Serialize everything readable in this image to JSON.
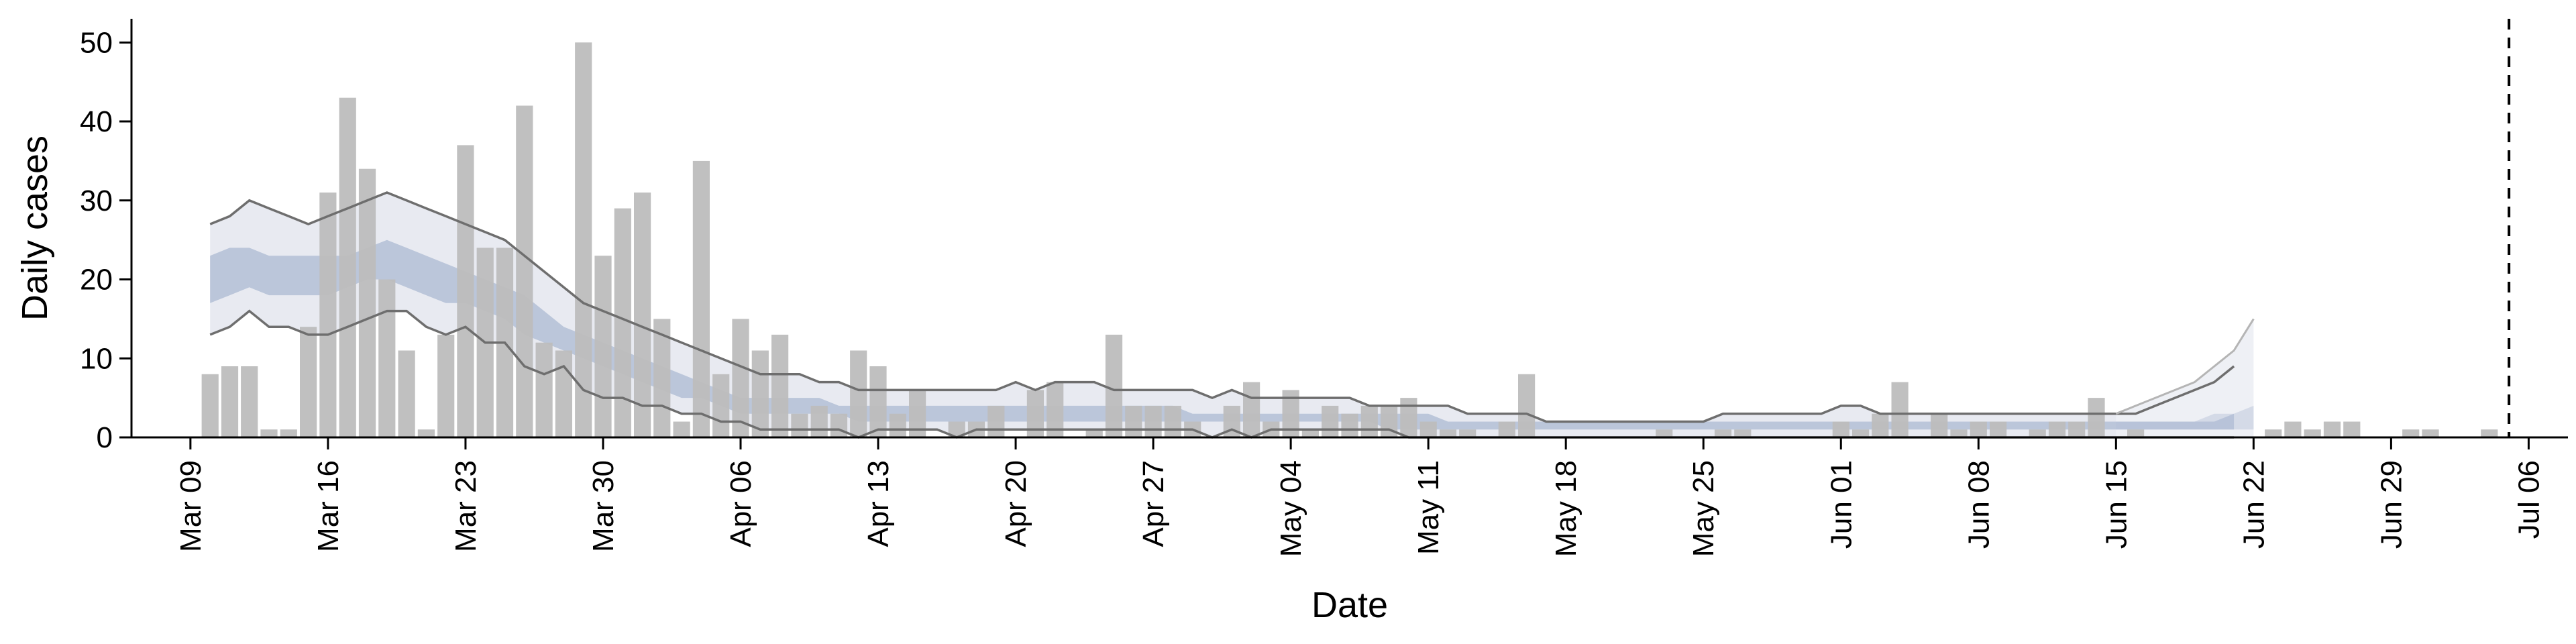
{
  "chart_data": {
    "type": "bar",
    "xlabel": "Date",
    "ylabel": "Daily cases",
    "ylim": [
      0,
      53
    ],
    "yticks": [
      0,
      10,
      20,
      30,
      40,
      50
    ],
    "xlim": [
      "2020-03-06",
      "2020-07-08"
    ],
    "xticks": [
      {
        "date": "2020-03-09",
        "label": "Mar 09"
      },
      {
        "date": "2020-03-16",
        "label": "Mar 16"
      },
      {
        "date": "2020-03-23",
        "label": "Mar 23"
      },
      {
        "date": "2020-03-30",
        "label": "Mar 30"
      },
      {
        "date": "2020-04-06",
        "label": "Apr 06"
      },
      {
        "date": "2020-04-13",
        "label": "Apr 13"
      },
      {
        "date": "2020-04-20",
        "label": "Apr 20"
      },
      {
        "date": "2020-04-27",
        "label": "Apr 27"
      },
      {
        "date": "2020-05-04",
        "label": "May 04"
      },
      {
        "date": "2020-05-11",
        "label": "May 11"
      },
      {
        "date": "2020-05-18",
        "label": "May 18"
      },
      {
        "date": "2020-05-25",
        "label": "May 25"
      },
      {
        "date": "2020-06-01",
        "label": "Jun 01"
      },
      {
        "date": "2020-06-08",
        "label": "Jun 08"
      },
      {
        "date": "2020-06-15",
        "label": "Jun 15"
      },
      {
        "date": "2020-06-22",
        "label": "Jun 22"
      },
      {
        "date": "2020-06-29",
        "label": "Jun 29"
      },
      {
        "date": "2020-07-06",
        "label": "Jul 06"
      }
    ],
    "bars": {
      "start_date": "2020-03-10",
      "values": [
        8,
        9,
        9,
        1,
        1,
        14,
        31,
        43,
        34,
        20,
        11,
        1,
        13,
        37,
        24,
        24,
        42,
        12,
        11,
        50,
        23,
        29,
        31,
        15,
        2,
        35,
        8,
        15,
        11,
        13,
        3,
        4,
        3,
        11,
        9,
        3,
        6,
        0,
        2,
        2,
        4,
        0,
        6,
        7,
        0,
        1,
        13,
        4,
        4,
        4,
        2,
        0,
        4,
        7,
        2,
        6,
        1,
        4,
        3,
        4,
        4,
        5,
        2,
        1,
        1,
        0,
        2,
        8,
        0,
        0,
        0,
        0,
        0,
        0,
        1,
        0,
        0,
        1,
        1,
        0,
        0,
        0,
        0,
        2,
        1,
        3,
        7,
        0,
        3,
        1,
        2,
        2,
        0,
        1,
        2,
        2,
        5,
        0,
        1,
        0,
        0,
        0,
        0,
        0,
        0,
        1,
        2,
        1,
        2,
        2,
        0,
        0,
        1,
        1,
        0,
        0,
        1
      ]
    },
    "band_dates": [
      "2020-03-10",
      "2020-03-11",
      "2020-03-12",
      "2020-03-13",
      "2020-03-14",
      "2020-03-15",
      "2020-03-16",
      "2020-03-17",
      "2020-03-18",
      "2020-03-19",
      "2020-03-20",
      "2020-03-21",
      "2020-03-22",
      "2020-03-23",
      "2020-03-24",
      "2020-03-25",
      "2020-03-26",
      "2020-03-27",
      "2020-03-28",
      "2020-03-29",
      "2020-03-30",
      "2020-03-31",
      "2020-04-01",
      "2020-04-02",
      "2020-04-03",
      "2020-04-04",
      "2020-04-05",
      "2020-04-06",
      "2020-04-07",
      "2020-04-08",
      "2020-04-09",
      "2020-04-10",
      "2020-04-11",
      "2020-04-12",
      "2020-04-13",
      "2020-04-14",
      "2020-04-15",
      "2020-04-16",
      "2020-04-17",
      "2020-04-18",
      "2020-04-19",
      "2020-04-20",
      "2020-04-21",
      "2020-04-22",
      "2020-04-23",
      "2020-04-24",
      "2020-04-25",
      "2020-04-26",
      "2020-04-27",
      "2020-04-28",
      "2020-04-29",
      "2020-04-30",
      "2020-05-01",
      "2020-05-02",
      "2020-05-03",
      "2020-05-04",
      "2020-05-05",
      "2020-05-06",
      "2020-05-07",
      "2020-05-08",
      "2020-05-09",
      "2020-05-10",
      "2020-05-11",
      "2020-05-12",
      "2020-05-13",
      "2020-05-14",
      "2020-05-15",
      "2020-05-16",
      "2020-05-17",
      "2020-05-18",
      "2020-05-19",
      "2020-05-20",
      "2020-05-21",
      "2020-05-22",
      "2020-05-23",
      "2020-05-24",
      "2020-05-25",
      "2020-05-26",
      "2020-05-27",
      "2020-05-28",
      "2020-05-29",
      "2020-05-30",
      "2020-05-31",
      "2020-06-01",
      "2020-06-02",
      "2020-06-03",
      "2020-06-04",
      "2020-06-05",
      "2020-06-06",
      "2020-06-07",
      "2020-06-08",
      "2020-06-09",
      "2020-06-10",
      "2020-06-11",
      "2020-06-12",
      "2020-06-13",
      "2020-06-14",
      "2020-06-15",
      "2020-06-16",
      "2020-06-17",
      "2020-06-18",
      "2020-06-19",
      "2020-06-20",
      "2020-06-21"
    ],
    "upper_95": [
      27,
      28,
      30,
      29,
      28,
      27,
      28,
      29,
      30,
      31,
      30,
      29,
      28,
      27,
      26,
      25,
      23,
      21,
      19,
      17,
      16,
      15,
      14,
      13,
      12,
      11,
      10,
      9,
      8,
      8,
      8,
      7,
      7,
      6,
      6,
      6,
      6,
      6,
      6,
      6,
      6,
      7,
      6,
      7,
      7,
      7,
      6,
      6,
      6,
      6,
      6,
      5,
      6,
      5,
      5,
      5,
      5,
      5,
      5,
      4,
      4,
      4,
      4,
      4,
      3,
      3,
      3,
      3,
      2,
      2,
      2,
      2,
      2,
      2,
      2,
      2,
      2,
      3,
      3,
      3,
      3,
      3,
      3,
      4,
      4,
      3,
      3,
      3,
      3,
      3,
      3,
      3,
      3,
      3,
      3,
      3,
      3,
      3,
      3,
      4,
      5,
      6,
      7,
      9
    ],
    "lower_95": [
      13,
      14,
      16,
      14,
      14,
      13,
      13,
      14,
      15,
      16,
      16,
      14,
      13,
      14,
      12,
      12,
      9,
      8,
      9,
      6,
      5,
      5,
      4,
      4,
      3,
      3,
      2,
      2,
      1,
      1,
      1,
      1,
      1,
      0,
      1,
      1,
      1,
      1,
      0,
      1,
      1,
      1,
      1,
      1,
      1,
      1,
      1,
      1,
      1,
      1,
      1,
      0,
      1,
      0,
      1,
      1,
      1,
      1,
      1,
      1,
      1,
      0,
      0,
      0,
      0,
      0,
      0,
      0,
      0,
      0,
      0,
      0,
      0,
      0,
      0,
      0,
      0,
      0,
      0,
      0,
      0,
      0,
      0,
      0,
      0,
      0,
      0,
      0,
      0,
      0,
      0,
      0,
      0,
      0,
      0,
      0,
      0,
      0,
      0,
      0,
      0,
      0,
      0,
      0
    ],
    "upper_50": [
      23,
      24,
      24,
      23,
      23,
      23,
      23,
      23,
      24,
      25,
      24,
      23,
      22,
      21,
      20,
      19,
      18,
      16,
      14,
      13,
      12,
      11,
      10,
      9,
      8,
      7,
      6,
      5,
      5,
      5,
      5,
      5,
      4,
      4,
      4,
      4,
      4,
      4,
      4,
      4,
      4,
      4,
      4,
      4,
      4,
      4,
      4,
      4,
      4,
      4,
      3,
      3,
      3,
      3,
      3,
      3,
      3,
      3,
      3,
      3,
      3,
      3,
      3,
      2,
      2,
      2,
      2,
      2,
      2,
      2,
      2,
      2,
      2,
      2,
      2,
      2,
      2,
      2,
      2,
      2,
      2,
      2,
      2,
      2,
      2,
      2,
      2,
      2,
      2,
      2,
      2,
      2,
      2,
      2,
      2,
      2,
      2,
      2,
      2,
      2,
      2,
      2,
      2,
      3
    ],
    "lower_50": [
      17,
      18,
      19,
      18,
      18,
      18,
      18,
      19,
      20,
      20,
      19,
      18,
      17,
      17,
      16,
      15,
      13,
      12,
      11,
      10,
      9,
      8,
      7,
      6,
      5,
      5,
      4,
      3,
      3,
      3,
      3,
      3,
      3,
      2,
      2,
      2,
      2,
      2,
      2,
      2,
      2,
      2,
      2,
      2,
      2,
      2,
      2,
      2,
      2,
      2,
      2,
      2,
      2,
      2,
      2,
      2,
      2,
      2,
      2,
      2,
      1,
      1,
      1,
      1,
      1,
      1,
      1,
      1,
      1,
      1,
      1,
      1,
      1,
      1,
      1,
      1,
      1,
      1,
      1,
      1,
      1,
      1,
      1,
      1,
      1,
      1,
      1,
      1,
      1,
      1,
      1,
      1,
      1,
      1,
      1,
      1,
      1,
      1,
      1,
      1,
      1,
      1,
      1,
      1
    ],
    "forecast": {
      "dates": [
        "2020-06-15",
        "2020-06-16",
        "2020-06-17",
        "2020-06-18",
        "2020-06-19",
        "2020-06-20",
        "2020-06-21",
        "2020-06-22"
      ],
      "upper_95": [
        3,
        4,
        5,
        6,
        7,
        9,
        11,
        15
      ],
      "upper_50": [
        2,
        2,
        2,
        2,
        2,
        3,
        3,
        4
      ],
      "lower_50": [
        1,
        1,
        1,
        1,
        1,
        1,
        1,
        1
      ],
      "lower_95": [
        0,
        0,
        0,
        0,
        0,
        0,
        0,
        0
      ]
    },
    "vline_date": "2020-07-05",
    "colors": {
      "bars": "#bdbdbd",
      "band_95": "#e8eaf1",
      "band_50": "#b3bfd6",
      "band_line": "#6e6e6e",
      "forecast_95": "#eef0f5",
      "forecast_line": "#b5b5b5",
      "axis": "#000000"
    },
    "grid": false
  }
}
